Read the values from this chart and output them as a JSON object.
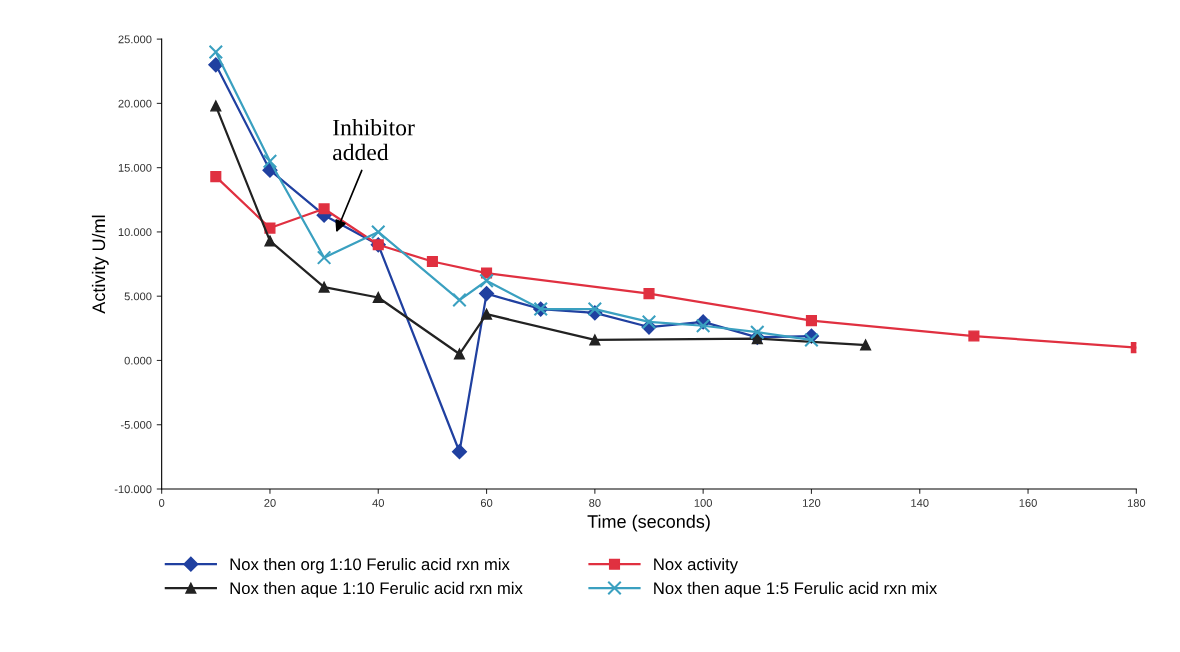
{
  "chart_data": {
    "type": "line",
    "xlabel": "Time (seconds)",
    "ylabel": "Activity U/ml",
    "xlim": [
      0,
      180
    ],
    "xticks": [
      0,
      20,
      40,
      60,
      80,
      100,
      120,
      140,
      160,
      180
    ],
    "ylim": [
      -10,
      25
    ],
    "yticks": [
      {
        "value": -10,
        "label": "-10.000"
      },
      {
        "value": -5,
        "label": "-5.000"
      },
      {
        "value": 0,
        "label": "0.000"
      },
      {
        "value": 5,
        "label": "5.000"
      },
      {
        "value": 10,
        "label": "10.000"
      },
      {
        "value": 15,
        "label": "15.000"
      },
      {
        "value": 20,
        "label": "20.000"
      },
      {
        "value": 25,
        "label": "25.000"
      }
    ],
    "grid": false,
    "legend": "bottom",
    "line_style": "solid",
    "annotations": [
      "Inhibitor\nadded"
    ],
    "series": [
      {
        "name": "Nox then org 1:10 Ferulic acid rxn mix",
        "color": "#2040a0",
        "marker": "diamond",
        "x": [
          10,
          20,
          30,
          40,
          55,
          60,
          70,
          80,
          90,
          100,
          110,
          120
        ],
        "values": [
          23,
          14.8,
          11.3,
          9,
          -7.1,
          5.2,
          4.0,
          3.7,
          2.6,
          3.0,
          1.8,
          1.9
        ]
      },
      {
        "name": "Nox activity",
        "color": "#e03040",
        "marker": "square",
        "x": [
          10,
          20,
          30,
          40,
          50,
          60,
          90,
          120,
          150,
          180
        ],
        "values": [
          14.3,
          10.3,
          11.8,
          9.0,
          7.7,
          6.8,
          5.2,
          3.1,
          1.9,
          1.0
        ]
      },
      {
        "name": "Nox then aque 1:10 Ferulic acid rxn mix",
        "color": "#222222",
        "marker": "triangle",
        "x": [
          10,
          20,
          30,
          40,
          55,
          60,
          80,
          110,
          130
        ],
        "values": [
          19.8,
          9.3,
          5.7,
          4.9,
          0.5,
          3.6,
          1.6,
          1.7,
          1.2
        ]
      },
      {
        "name": "Nox then aque 1:5 Ferulic acid rxn mix",
        "color": "#3aa0c0",
        "marker": "cross",
        "x": [
          10,
          20,
          30,
          40,
          55,
          60,
          70,
          80,
          90,
          100,
          110,
          120
        ],
        "values": [
          24,
          15.5,
          8.0,
          10,
          4.7,
          6.2,
          4.0,
          4.0,
          3.0,
          2.7,
          2.2,
          1.6
        ]
      }
    ]
  }
}
